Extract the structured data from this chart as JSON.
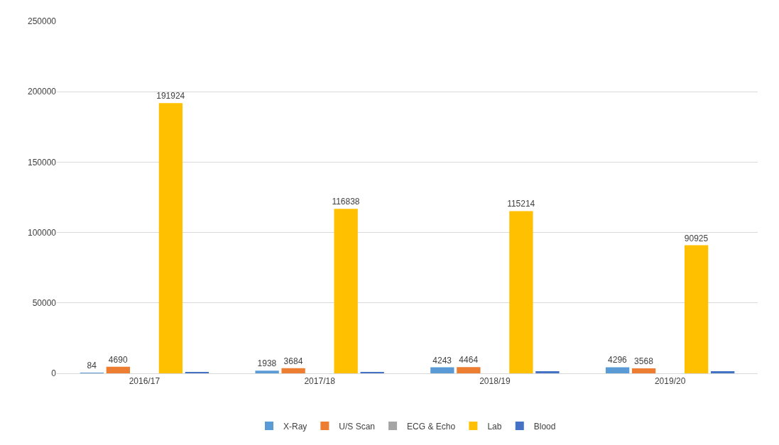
{
  "chart_data": {
    "type": "bar",
    "categories": [
      "2016/17",
      "2017/18",
      "2018/19",
      "2019/20"
    ],
    "series": [
      {
        "name": "X-Ray",
        "color": "#5b9bd5",
        "values": [
          84,
          1938,
          4243,
          4296
        ],
        "value_labels": [
          "84",
          "1938",
          "4243",
          "4296"
        ]
      },
      {
        "name": "U/S Scan",
        "color": "#ed7d31",
        "values": [
          4690,
          3684,
          4464,
          3568
        ],
        "value_labels": [
          "4690",
          "3684",
          "4464",
          "3568"
        ]
      },
      {
        "name": "ECG & Echo",
        "color": "#a5a5a5",
        "values": [
          null,
          null,
          null,
          null
        ]
      },
      {
        "name": "Lab",
        "color": "#ffc000",
        "values": [
          191924,
          116838,
          115214,
          90925
        ],
        "value_labels": [
          "191924",
          "116838",
          "115214",
          "90925"
        ]
      },
      {
        "name": "Blood",
        "color": "#4472c4",
        "values": [
          700,
          700,
          1500,
          1500
        ]
      }
    ],
    "ylim": [
      0,
      250000
    ],
    "yticks": [
      0,
      50000,
      100000,
      150000,
      200000,
      250000
    ],
    "grid": "y",
    "legend": "bottom"
  }
}
